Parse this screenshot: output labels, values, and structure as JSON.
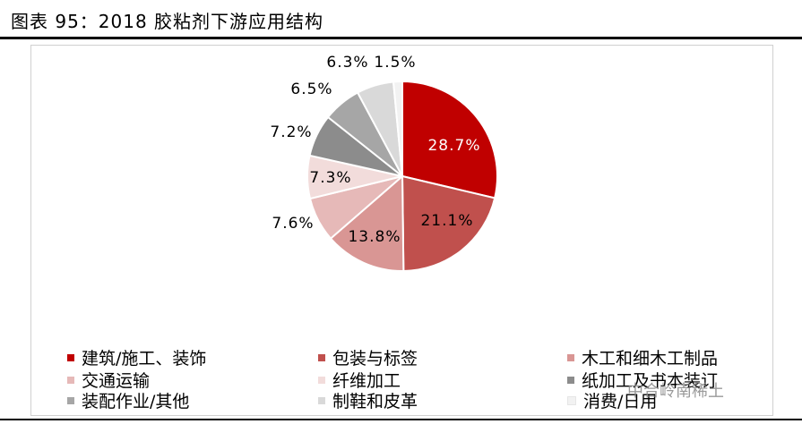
{
  "title": "图表 95：2018 胶粘剂下游应用结构",
  "watermark": "中合岭南稀土",
  "chart_data": {
    "type": "pie",
    "title": "",
    "slices": [
      {
        "label": "建筑/施工、装饰",
        "value": 28.7,
        "display": "28.7%",
        "color": "#C00000"
      },
      {
        "label": "包装与标签",
        "value": 21.1,
        "display": "21.1%",
        "color": "#C0504D"
      },
      {
        "label": "木工和细木工制品",
        "value": 13.8,
        "display": "13.8%",
        "color": "#D99694"
      },
      {
        "label": "交通运输",
        "value": 7.6,
        "display": "7.6%",
        "color": "#E6B9B8"
      },
      {
        "label": "纤维加工",
        "value": 7.3,
        "display": "7.3%",
        "color": "#F2DCDB"
      },
      {
        "label": "纸加工及书本装订",
        "value": 7.2,
        "display": "7.2%",
        "color": "#8C8C8C"
      },
      {
        "label": "装配作业/其他",
        "value": 6.5,
        "display": "6.5%",
        "color": "#A6A6A6"
      },
      {
        "label": "制鞋和皮革",
        "value": 6.3,
        "display": "6.3%",
        "color": "#D9D9D9"
      },
      {
        "label": "消费/日用",
        "value": 1.5,
        "display": "1.5%",
        "color": "#F2F2F2"
      }
    ],
    "legend_position": "bottom"
  }
}
